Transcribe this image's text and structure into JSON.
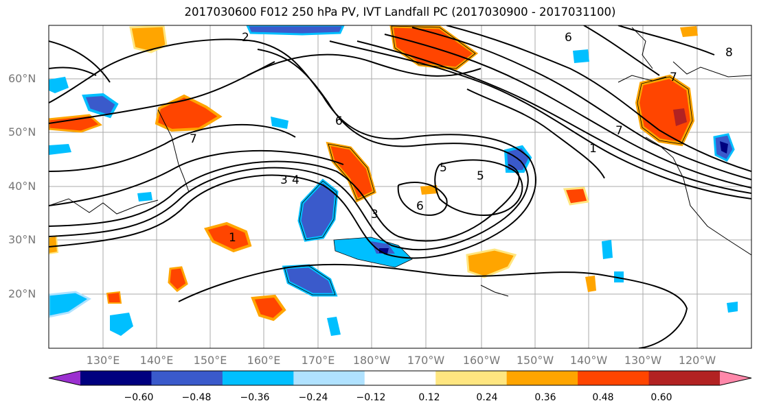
{
  "title": "2017030600 F012 250 hPa PV, IVT Landfall PC (2017030900 - 2017031100)",
  "map": {
    "lat_labels": [
      "60°N",
      "50°N",
      "40°N",
      "30°N",
      "20°N"
    ],
    "lon_labels": [
      "130°E",
      "140°E",
      "150°E",
      "160°E",
      "170°E",
      "180°W",
      "170°W",
      "160°W",
      "150°W",
      "140°W",
      "130°W",
      "120°W"
    ],
    "contour_labels": [
      "1",
      "2",
      "3",
      "4",
      "5",
      "6",
      "7",
      "8"
    ]
  },
  "colorbar": {
    "ticks": [
      "−0.60",
      "−0.48",
      "−0.36",
      "−0.24",
      "−0.12",
      "0.12",
      "0.24",
      "0.36",
      "0.48",
      "0.60"
    ],
    "colors": [
      "#9b30d0",
      "#00007f",
      "#3a5acb",
      "#00bfff",
      "#b0e2ff",
      "#ffffff",
      "#ffe680",
      "#ffa500",
      "#ff4500",
      "#b22222",
      "#ff88aa"
    ]
  }
}
